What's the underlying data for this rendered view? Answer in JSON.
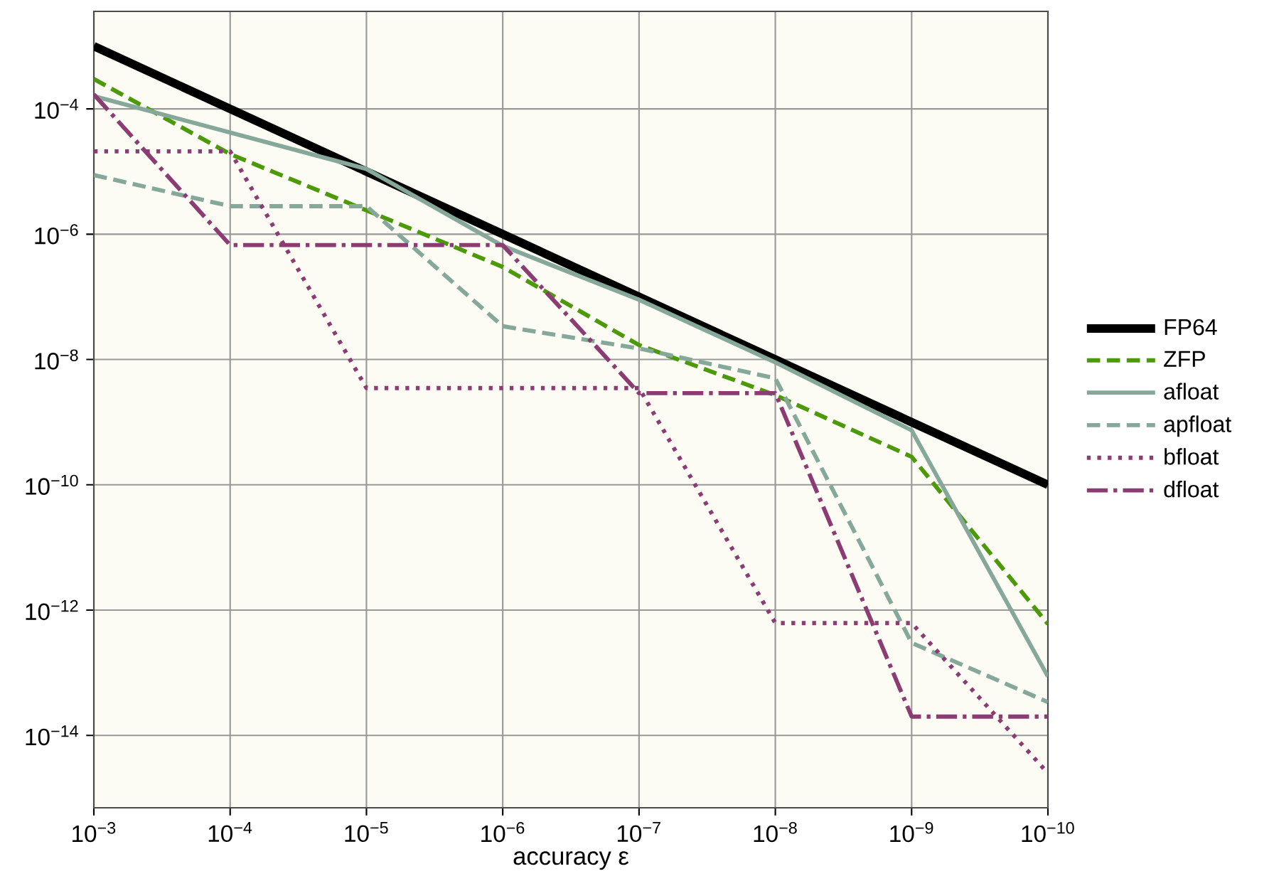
{
  "chart_data": {
    "type": "line",
    "xlabel": "accuracy ε",
    "log": "xy",
    "grid": true,
    "legend": "right",
    "x": [
      0.001,
      0.0001,
      1e-05,
      1e-06,
      1e-07,
      1e-08,
      1e-09,
      1e-10
    ],
    "xlim": [
      0.001,
      1e-10
    ],
    "xticks": [
      {
        "value": 0.001,
        "label": "10$^{−3}$"
      },
      {
        "value": 0.0001,
        "label": "10$^{−4}$"
      },
      {
        "value": 1e-05,
        "label": "10$^{−5}$"
      },
      {
        "value": 1e-06,
        "label": "10$^{−6}$"
      },
      {
        "value": 1e-07,
        "label": "10$^{−7}$"
      },
      {
        "value": 1e-08,
        "label": "10$^{−8}$"
      },
      {
        "value": 1e-09,
        "label": "10$^{−9}$"
      },
      {
        "value": 1e-10,
        "label": "10$^{−10}$"
      }
    ],
    "ylim": [
      7e-16,
      0.0036
    ],
    "yticks": [
      {
        "value": 1e-14,
        "label": "10$^{−14}$"
      },
      {
        "value": 1e-12,
        "label": "10$^{−12}$"
      },
      {
        "value": 1e-10,
        "label": "10$^{−10}$"
      },
      {
        "value": 1e-08,
        "label": "10$^{−8}$"
      },
      {
        "value": 1e-06,
        "label": "10$^{−6}$"
      },
      {
        "value": 0.0001,
        "label": "10$^{−4}$"
      }
    ],
    "series": [
      {
        "name": "FP64",
        "color": "#000000",
        "line_style": "solid",
        "values": [
          0.001,
          0.0001,
          1e-05,
          1e-06,
          1e-07,
          1e-08,
          1e-09,
          1e-10
        ]
      },
      {
        "name": "ZFP",
        "color": "#4c9a0a",
        "line_style": "dashed",
        "values": [
          0.0003,
          1.9e-05,
          2.4e-06,
          3e-07,
          1.7e-08,
          2.7e-09,
          2.8e-10,
          6e-13
        ]
      },
      {
        "name": "afloat",
        "color": "#86a89a",
        "line_style": "solid",
        "values": [
          0.00016,
          4.2e-05,
          1.1e-05,
          6.5e-07,
          9e-08,
          9e-09,
          7.4e-10,
          8.7e-14
        ]
      },
      {
        "name": "apfloat",
        "color": "#86a89a",
        "line_style": "dashed",
        "values": [
          8.8e-06,
          2.8e-06,
          2.8e-06,
          3.4e-08,
          1.5e-08,
          5e-09,
          3e-13,
          3.4e-14
        ]
      },
      {
        "name": "bfloat",
        "color": "#8b3c72",
        "line_style": "dotted",
        "values": [
          2.1e-05,
          2.1e-05,
          3.5e-09,
          3.5e-09,
          3.5e-09,
          6.2e-13,
          6.2e-13,
          2.5e-15
        ]
      },
      {
        "name": "dfloat",
        "color": "#8b3c72",
        "line_style": "dashdot",
        "values": [
          0.00017,
          6.7e-07,
          6.7e-07,
          6.7e-07,
          2.9e-09,
          2.9e-09,
          2e-14,
          2e-14
        ]
      }
    ]
  }
}
